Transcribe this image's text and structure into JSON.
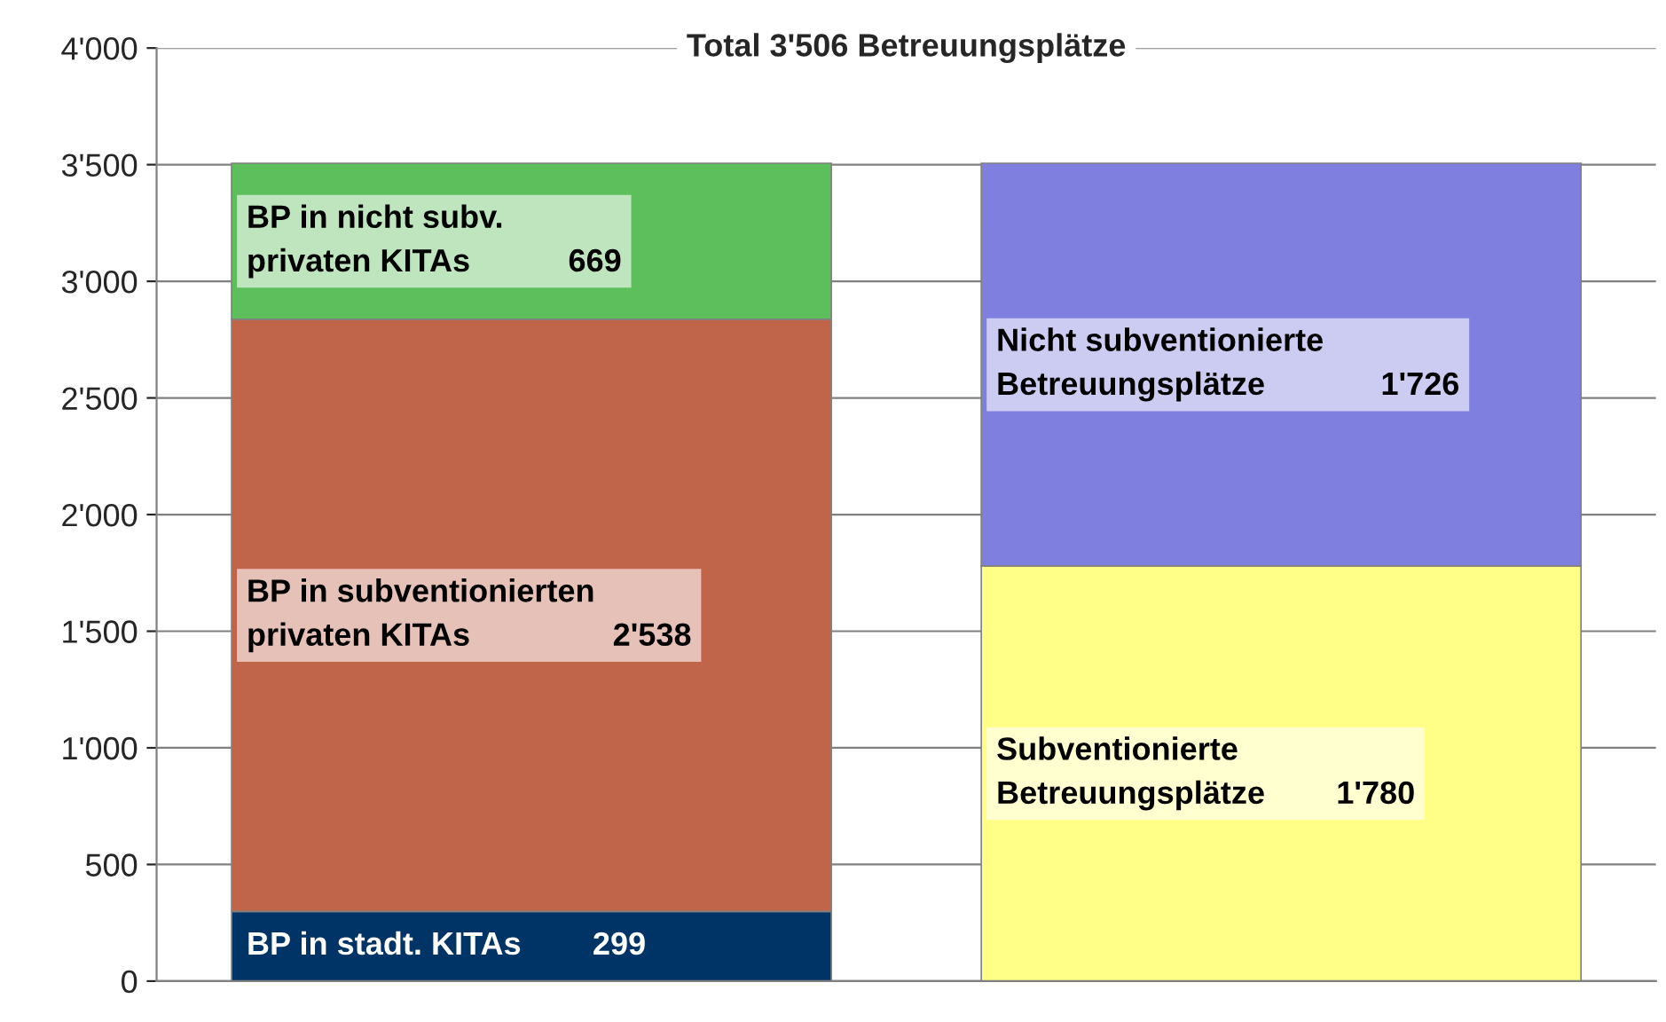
{
  "chart_data": {
    "type": "bar",
    "title": "Total 3'506 Betreuungsplätze",
    "stacked": true,
    "categories": [
      null,
      null
    ],
    "series": [
      {
        "name": "BP in stadt. KITAs",
        "color": "#003366",
        "values": [
          299,
          null
        ],
        "value_labels": [
          "299",
          null
        ]
      },
      {
        "name": "BP in subventionierten\nprivaten KITAs",
        "color": "#c0654a",
        "values": [
          2538,
          null
        ],
        "value_labels": [
          "2'538",
          null
        ]
      },
      {
        "name": "BP in nicht subv.\nprivaten KITAs",
        "color": "#5cbf5c",
        "values": [
          669,
          null
        ],
        "value_labels": [
          "669",
          null
        ]
      },
      {
        "name": "Subventionierte\nBetreuungsplätze",
        "color": "#ffff88",
        "values": [
          null,
          1780
        ],
        "value_labels": [
          null,
          "1'780"
        ]
      },
      {
        "name": "Nicht subventionierte\nBetreuungsplätze",
        "color": "#7f7fdf",
        "values": [
          null,
          1726
        ],
        "value_labels": [
          null,
          "1'726"
        ]
      }
    ],
    "ylim": [
      0,
      4000
    ],
    "yticks": [
      {
        "value": 0,
        "label": "0"
      },
      {
        "value": 500,
        "label": "500"
      },
      {
        "value": 1000,
        "label": "1'000"
      },
      {
        "value": 1500,
        "label": "1'500"
      },
      {
        "value": 2000,
        "label": "2'000"
      },
      {
        "value": 2500,
        "label": "2'500"
      },
      {
        "value": 3000,
        "label": "3'000"
      },
      {
        "value": 3500,
        "label": "3'500"
      },
      {
        "value": 4000,
        "label": "4'000"
      }
    ],
    "grid": "y"
  }
}
